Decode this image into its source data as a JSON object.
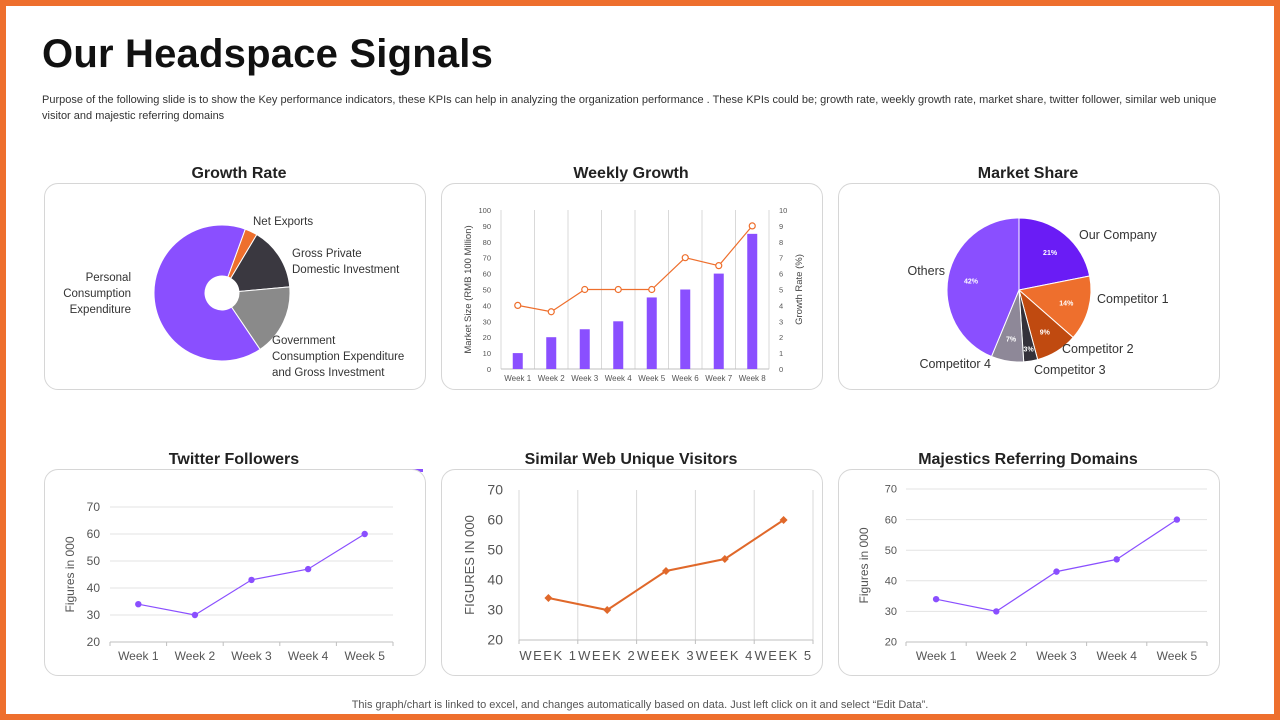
{
  "page": {
    "title": "Our Headspace Signals",
    "description": "Purpose of the following slide is to show the  Key performance indicators, these KPIs can help in analyzing the organization performance . These KPIs could be; growth rate, weekly growth rate, market share, twitter follower, similar web unique visitor and majestic referring domains",
    "footer": "This graph/chart is linked to excel, and changes automatically based on data. Just left click on it and select “Edit Data”."
  },
  "colors": {
    "accent": "#8a4fff",
    "orange": "#ee6f2d",
    "border": "#ee6f2d"
  },
  "chart_data": [
    {
      "id": "growth",
      "type": "pie",
      "title": "Growth Rate",
      "donut": true,
      "labels": [
        "Net Exports",
        "Gross Private Domestic Investment",
        "Government Consumption Expenditure and Gross Investment",
        "Personal Consumption Expenditure"
      ],
      "label_lines": [
        [
          "Net Exports"
        ],
        [
          "Gross Private",
          "Domestic Investment"
        ],
        [
          "Government",
          "Consumption Expenditure",
          "and Gross Investment"
        ],
        [
          "Personal",
          "Consumption",
          "Expenditure"
        ]
      ],
      "values": [
        3,
        15,
        17,
        65
      ],
      "colors": [
        "#ee6f2d",
        "#3a3840",
        "#8a8a8a",
        "#8a4fff"
      ]
    },
    {
      "id": "weekly",
      "type": "bar",
      "title": "Weekly Growth",
      "categories": [
        "Week 1",
        "Week 2",
        "Week 3",
        "Week 4",
        "Week 5",
        "Week 6",
        "Week 7",
        "Week 8"
      ],
      "series": [
        {
          "name": "Market Size",
          "type": "bar",
          "axis": "left",
          "values": [
            10,
            20,
            25,
            30,
            45,
            50,
            60,
            85
          ],
          "color": "#8a4fff"
        },
        {
          "name": "Growth Rate",
          "type": "line",
          "axis": "right",
          "values": [
            4,
            3.6,
            5,
            5,
            5,
            7,
            6.5,
            9
          ],
          "color": "#ee6f2d"
        }
      ],
      "ylabel": "Market Size (RMB 100 Million)",
      "y2label": "Growth Rate (%)",
      "ylim": [
        0,
        100
      ],
      "y_ticks": [
        0,
        10,
        20,
        30,
        40,
        50,
        60,
        70,
        80,
        90,
        100
      ],
      "y2lim": [
        0,
        10
      ],
      "y2_ticks": [
        0,
        1,
        2,
        3,
        4,
        5,
        6,
        7,
        8,
        9,
        10
      ]
    },
    {
      "id": "market",
      "type": "pie",
      "title": "Market Share",
      "labels": [
        "Our Company",
        "Competitor 1",
        "Competitor 2",
        "Competitor 3",
        "Competitor 4",
        "Others"
      ],
      "values": [
        21,
        14,
        9,
        3,
        7,
        42
      ],
      "value_labels": [
        "21%",
        "14%",
        "9%",
        "3%",
        "7%",
        "42%"
      ],
      "colors": [
        "#6a1cf5",
        "#ee6f2d",
        "#c04a10",
        "#34313a",
        "#8e8898",
        "#8a4fff"
      ]
    },
    {
      "id": "twitter",
      "type": "line",
      "title": "Twitter Followers",
      "categories": [
        "Week 1",
        "Week 2",
        "Week 3",
        "Week 4",
        "Week 5"
      ],
      "values": [
        34,
        30,
        43,
        47,
        60
      ],
      "ylabel": "Figures in 000",
      "ylim": [
        20,
        70
      ],
      "y_ticks": [
        20,
        30,
        40,
        50,
        60,
        70
      ],
      "color": "#8a4fff"
    },
    {
      "id": "similar",
      "type": "line",
      "title": "Similar Web Unique Visitors",
      "categories": [
        "WEEK 1",
        "WEEK 2",
        "WEEK 3",
        "WEEK 4",
        "WEEK 5"
      ],
      "values": [
        34,
        30,
        43,
        47,
        60
      ],
      "ylabel": "FIGURES IN 000",
      "ylim": [
        20,
        70
      ],
      "y_ticks": [
        20,
        30,
        40,
        50,
        60,
        70
      ],
      "color": "#e0682a"
    },
    {
      "id": "majestic",
      "type": "line",
      "title": "Majestics Referring Domains",
      "categories": [
        "Week 1",
        "Week 2",
        "Week 3",
        "Week 4",
        "Week 5"
      ],
      "values": [
        34,
        30,
        43,
        47,
        60
      ],
      "ylabel": "Figures in 000",
      "ylim": [
        20,
        70
      ],
      "y_ticks": [
        20,
        30,
        40,
        50,
        60,
        70
      ],
      "color": "#8a4fff"
    }
  ]
}
